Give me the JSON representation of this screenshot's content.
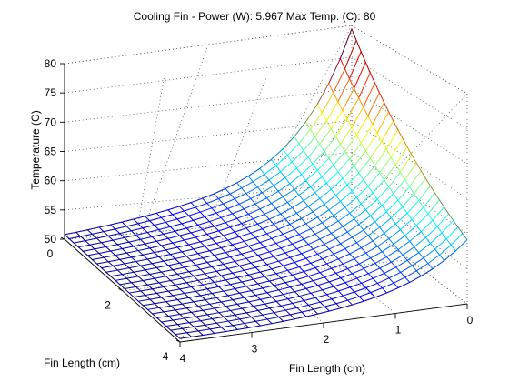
{
  "chart_data": {
    "type": "surface",
    "title": "Cooling Fin - Power (W): 5.967 Max Temp. (C): 80",
    "zlabel": "Temperature (C)",
    "xlabel": "Fin Length (cm)",
    "ylabel": "Fin Length (cm)",
    "x_ticks": [
      "0",
      "1",
      "2",
      "3",
      "4"
    ],
    "y_ticks": [
      "0",
      "2",
      "4"
    ],
    "z_ticks": [
      "50",
      "55",
      "60",
      "65",
      "70",
      "75",
      "80"
    ],
    "xlim": [
      0,
      4
    ],
    "ylim": [
      0,
      4
    ],
    "zlim": [
      50,
      80
    ],
    "grid": true,
    "colormap": "jet",
    "colors": {
      "line": "#000000",
      "axis": "#000000",
      "grid": "#555555"
    },
    "max_temperature": 80,
    "base_temperature": 50.5,
    "corner_values": {
      "far_edge_start": 52,
      "near_left": 50,
      "near_right": 52,
      "peak": 80
    },
    "mesh_resolution": 25
  }
}
